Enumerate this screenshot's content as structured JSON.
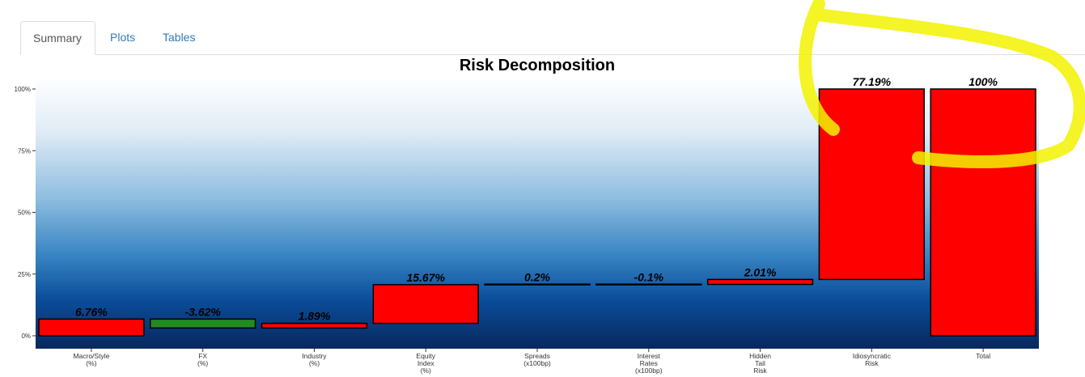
{
  "tabs": [
    {
      "label": "Summary",
      "active": true
    },
    {
      "label": "Plots"
    },
    {
      "label": "Tables"
    }
  ],
  "chart_data": {
    "type": "waterfall",
    "title": "Risk Decomposition",
    "categories": [
      "Macro/Style\n(%)",
      "FX\n(%)",
      "Industry\n(%)",
      "Equity\nIndex\n(%)",
      "Spreads\n(x100bp)",
      "Interest\nRates\n(x100bp)",
      "Hidden\nTail\nRisk",
      "Idiosyncratic\nRisk",
      "Total"
    ],
    "values": [
      6.76,
      -3.62,
      1.89,
      15.67,
      0.2,
      -0.1,
      2.01,
      77.19,
      100
    ],
    "labels": [
      "6.76%",
      "-3.62%",
      "1.89%",
      "15.67%",
      "0.2%",
      "-0.1%",
      "2.01%",
      "77.19%",
      "100%"
    ],
    "yticks": [
      "0%",
      "25%",
      "50%",
      "75%",
      "100%"
    ],
    "ylim": [
      -5,
      105
    ],
    "colors": {
      "positive": "#ff0000",
      "negative": "#228b22",
      "bg_top": "#ffffff",
      "bg_bottom": "#08285e",
      "highlight": "#ffff00"
    }
  }
}
